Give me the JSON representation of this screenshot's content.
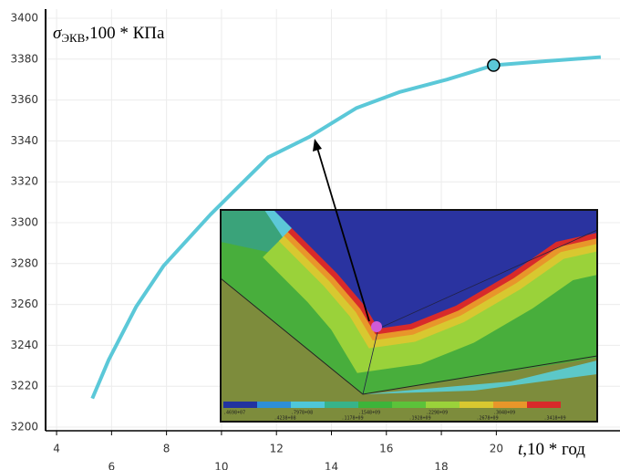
{
  "chart_data": {
    "type": "line",
    "y_label": {
      "symbol": "σ",
      "subscript": "ЭКВ",
      "text": ",100 * КПа"
    },
    "x_label": {
      "symbol": "t",
      "text": ",10 * год"
    },
    "x": [
      5.3,
      5.9,
      6.9,
      7.9,
      9.6,
      11.7,
      13.2,
      14.9,
      16.5,
      18.2,
      19.9,
      21.8,
      23.8
    ],
    "values": [
      3214,
      3233,
      3259,
      3279,
      3304,
      3332,
      3342,
      3356,
      3364,
      3370,
      3377,
      3379,
      3381
    ],
    "color": "#5bc8d8",
    "highlight_index": 10,
    "xlim": [
      3.6,
      24.5
    ],
    "xticks": [
      4,
      6,
      8,
      10,
      12,
      14,
      16,
      18,
      20
    ],
    "ylim": [
      3200,
      3400
    ],
    "yticks": [
      3200,
      3220,
      3240,
      3260,
      3280,
      3300,
      3320,
      3340,
      3360,
      3380,
      3400
    ],
    "grid": true,
    "inset": {
      "colorbar": {
        "colors": [
          "#2233a0",
          "#2d8fd8",
          "#4fc7d8",
          "#37b38a",
          "#3db43a",
          "#5cc23a",
          "#9ad23a",
          "#d8c830",
          "#e8962a",
          "#d82a2a"
        ],
        "labels": [
          ".4698+07",
          ".4238+08",
          ".7978+08",
          ".1178+09",
          ".1548+09",
          ".1928+09",
          ".2298+09",
          ".2678+09",
          ".3048+09",
          ".3418+09"
        ]
      }
    }
  }
}
